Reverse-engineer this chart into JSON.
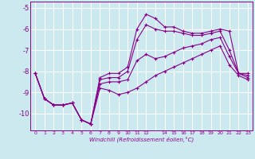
{
  "xlabel": "Windchill (Refroidissement éolien,°C)",
  "bg_color": "#cce9f0",
  "line_color": "#880088",
  "x": [
    0,
    1,
    2,
    3,
    4,
    5,
    6,
    7,
    8,
    9,
    10,
    11,
    12,
    13,
    14,
    15,
    16,
    17,
    18,
    19,
    20,
    21,
    22,
    23
  ],
  "line1": [
    -8.1,
    -9.3,
    -9.6,
    -9.6,
    -9.5,
    -10.3,
    -10.5,
    -8.3,
    -8.1,
    -8.1,
    -7.8,
    -6.0,
    -5.3,
    -5.5,
    -5.9,
    -5.9,
    -6.1,
    -6.2,
    -6.2,
    -6.1,
    -6.0,
    -6.1,
    -8.1,
    -8.1
  ],
  "line2": [
    -8.1,
    -9.3,
    -9.6,
    -9.6,
    -9.5,
    -10.3,
    -10.5,
    -8.4,
    -8.3,
    -8.3,
    -8.0,
    -6.5,
    -5.8,
    -6.0,
    -6.1,
    -6.1,
    -6.2,
    -6.3,
    -6.3,
    -6.2,
    -6.1,
    -7.0,
    -8.1,
    -8.2
  ],
  "line3": [
    -8.1,
    -9.3,
    -9.6,
    -9.6,
    -9.5,
    -10.3,
    -10.5,
    -8.6,
    -8.5,
    -8.5,
    -8.4,
    -7.5,
    -7.2,
    -7.4,
    -7.3,
    -7.1,
    -6.9,
    -6.8,
    -6.7,
    -6.5,
    -6.4,
    -7.3,
    -8.1,
    -8.3
  ],
  "line4": [
    -8.1,
    -9.3,
    -9.6,
    -9.6,
    -9.5,
    -10.3,
    -10.5,
    -8.8,
    -8.9,
    -9.1,
    -9.0,
    -8.8,
    -8.5,
    -8.2,
    -8.0,
    -7.8,
    -7.6,
    -7.4,
    -7.2,
    -7.0,
    -6.8,
    -7.7,
    -8.2,
    -8.4
  ],
  "ylim": [
    -10.8,
    -4.7
  ],
  "yticks": [
    -10,
    -9,
    -8,
    -7,
    -6,
    -5
  ],
  "xlim": [
    -0.5,
    23.5
  ],
  "xtick_labels": [
    "0",
    "1",
    "2",
    "3",
    "4",
    "5",
    "6",
    "7",
    "8",
    "9",
    "1011",
    "12",
    "",
    "14",
    "15",
    "16",
    "17",
    "18",
    "19",
    "20",
    "21",
    "2223",
    "",
    ""
  ]
}
